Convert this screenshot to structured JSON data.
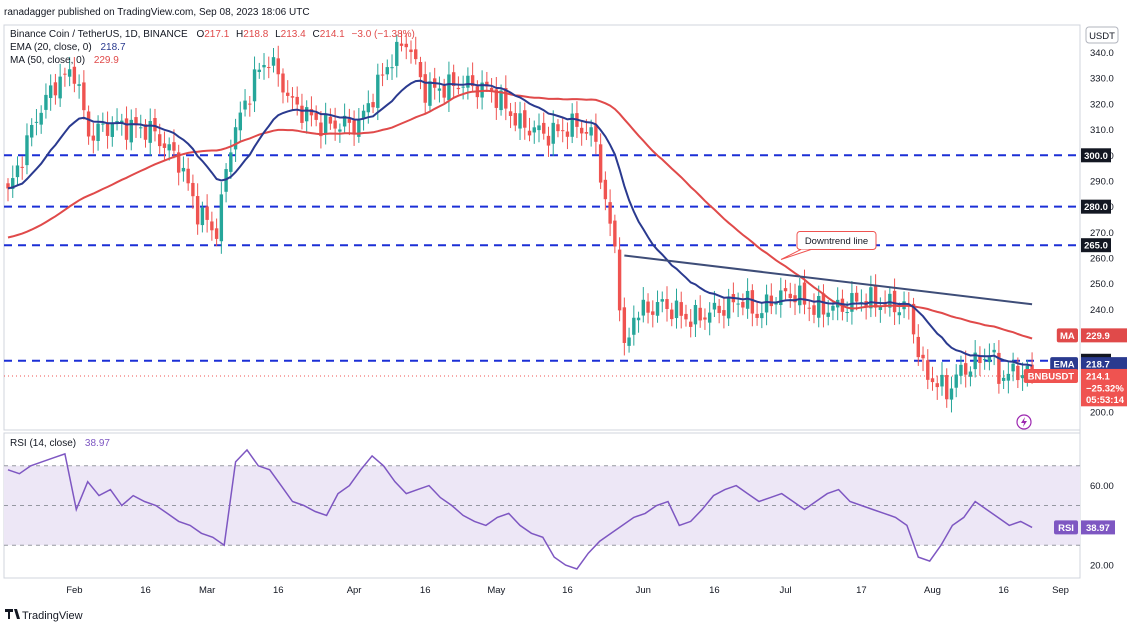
{
  "attribution": "ranadagger published on TradingView.com, Sep 08, 2023 18:06 UTC",
  "footer_brand": "TradingView",
  "currency_button": "USDT",
  "header": {
    "symbol": "Binance Coin / TetherUS, 1D, BINANCE",
    "ohlc": [
      {
        "k": "O",
        "v": "217.1"
      },
      {
        "k": "H",
        "v": "218.8"
      },
      {
        "k": "L",
        "v": "213.4"
      },
      {
        "k": "C",
        "v": "214.1"
      }
    ],
    "change": "−3.0 (−1.38%)",
    "ema_label": "EMA (20, close, 0)",
    "ema_value": "218.7",
    "ma_label": "MA (50, close, 0)",
    "ma_value": "229.9",
    "rsi_label": "RSI (14, close)",
    "rsi_value": "38.97"
  },
  "colors": {
    "up": "#26a69a",
    "down": "#ef5350",
    "ema": "#2a3a8f",
    "ma": "#e04a4a",
    "level": "#1b2fd6",
    "trendline": "#3e4d78",
    "rsi": "#7e57c2",
    "rsi_band": "#ede7f6"
  },
  "chart_data": [
    {
      "type": "candlestick",
      "title": "Binance Coin / TetherUS, 1D, BINANCE",
      "ylim": [
        195,
        348
      ],
      "y_ticks": [
        200,
        210,
        220,
        230,
        240,
        250,
        260,
        270,
        280,
        290,
        300,
        310,
        320,
        330,
        340
      ],
      "y_tick_labels": [
        "200.0",
        "210.0",
        "220.0",
        "230.0",
        "240.0",
        "250.0",
        "260.0",
        "270.0",
        "280.0",
        "290.0",
        "300.0",
        "310.0",
        "320.0",
        "330.0",
        "340.0"
      ],
      "x_ticks": [
        "Feb",
        "16",
        "Mar",
        "16",
        "Apr",
        "16",
        "May",
        "16",
        "Jun",
        "16",
        "Jul",
        "17",
        "Aug",
        "16",
        "Sep",
        "16"
      ],
      "grid": false,
      "close_keypoints": [
        {
          "i": 0,
          "c": 285
        },
        {
          "i": 6,
          "c": 315
        },
        {
          "i": 10,
          "c": 328
        },
        {
          "i": 14,
          "c": 333
        },
        {
          "i": 17,
          "c": 308
        },
        {
          "i": 22,
          "c": 312
        },
        {
          "i": 30,
          "c": 310
        },
        {
          "i": 36,
          "c": 298
        },
        {
          "i": 40,
          "c": 278
        },
        {
          "i": 44,
          "c": 270
        },
        {
          "i": 47,
          "c": 305
        },
        {
          "i": 52,
          "c": 330
        },
        {
          "i": 55,
          "c": 338
        },
        {
          "i": 60,
          "c": 320
        },
        {
          "i": 66,
          "c": 312
        },
        {
          "i": 74,
          "c": 312
        },
        {
          "i": 80,
          "c": 335
        },
        {
          "i": 84,
          "c": 345
        },
        {
          "i": 88,
          "c": 325
        },
        {
          "i": 96,
          "c": 328
        },
        {
          "i": 102,
          "c": 325
        },
        {
          "i": 108,
          "c": 312
        },
        {
          "i": 114,
          "c": 308
        },
        {
          "i": 120,
          "c": 312
        },
        {
          "i": 124,
          "c": 306
        },
        {
          "i": 126,
          "c": 280
        },
        {
          "i": 128,
          "c": 265
        },
        {
          "i": 130,
          "c": 222
        },
        {
          "i": 132,
          "c": 238
        },
        {
          "i": 138,
          "c": 242
        },
        {
          "i": 144,
          "c": 236
        },
        {
          "i": 150,
          "c": 240
        },
        {
          "i": 155,
          "c": 244
        },
        {
          "i": 158,
          "c": 238
        },
        {
          "i": 162,
          "c": 245
        },
        {
          "i": 166,
          "c": 246
        },
        {
          "i": 170,
          "c": 240
        },
        {
          "i": 176,
          "c": 241
        },
        {
          "i": 180,
          "c": 244
        },
        {
          "i": 186,
          "c": 242
        },
        {
          "i": 190,
          "c": 240
        },
        {
          "i": 193,
          "c": 216
        },
        {
          "i": 198,
          "c": 208
        },
        {
          "i": 201,
          "c": 216
        },
        {
          "i": 205,
          "c": 220
        },
        {
          "i": 207,
          "c": 224
        },
        {
          "i": 209,
          "c": 214
        },
        {
          "i": 214,
          "c": 216
        },
        {
          "i": 216,
          "c": 214.1
        }
      ],
      "levels": [
        {
          "value": 300,
          "label": "300.0"
        },
        {
          "value": 280,
          "label": "280.0"
        },
        {
          "value": 265,
          "label": "265.0"
        },
        {
          "value": 220,
          "label": "220.0"
        }
      ],
      "annotation": "Downtrend line",
      "trendline": [
        {
          "i": 130,
          "v": 261
        },
        {
          "i": 216,
          "v": 242
        }
      ],
      "tags": [
        {
          "name": "MA",
          "value": "229.9",
          "price": 229.9
        },
        {
          "name": "EMA",
          "value": "218.7",
          "price": 218.7
        },
        {
          "name": "BNBUSDT",
          "value": "214.1",
          "price": 214.1
        },
        {
          "name": "",
          "value": "−25.32%",
          "price": 209.5
        },
        {
          "name": "",
          "value": "05:53:14",
          "price": 205
        }
      ],
      "current_price": 214.1
    },
    {
      "type": "line",
      "title": "RSI (14, close)",
      "ylim": [
        15,
        85
      ],
      "y_ticks": [
        20,
        40,
        60
      ],
      "y_tick_labels": [
        "20.00",
        "40.00",
        "60.00"
      ],
      "bands": [
        30,
        50,
        70
      ],
      "values": [
        68,
        66,
        70,
        72,
        74,
        76,
        48,
        62,
        55,
        58,
        50,
        55,
        52,
        50,
        46,
        42,
        40,
        36,
        34,
        30,
        72,
        78,
        70,
        68,
        60,
        52,
        50,
        47,
        45,
        56,
        60,
        68,
        75,
        70,
        62,
        56,
        58,
        60,
        54,
        50,
        45,
        42,
        40,
        44,
        46,
        40,
        36,
        34,
        24,
        20,
        18,
        26,
        32,
        36,
        40,
        44,
        46,
        50,
        52,
        40,
        42,
        48,
        55,
        58,
        60,
        56,
        52,
        54,
        56,
        52,
        48,
        52,
        56,
        58,
        52,
        50,
        48,
        46,
        44,
        40,
        24,
        22,
        30,
        40,
        44,
        52,
        48,
        44,
        40,
        42,
        38.97
      ],
      "last": 38.97,
      "tag": {
        "name": "RSI",
        "value": "38.97"
      }
    }
  ]
}
